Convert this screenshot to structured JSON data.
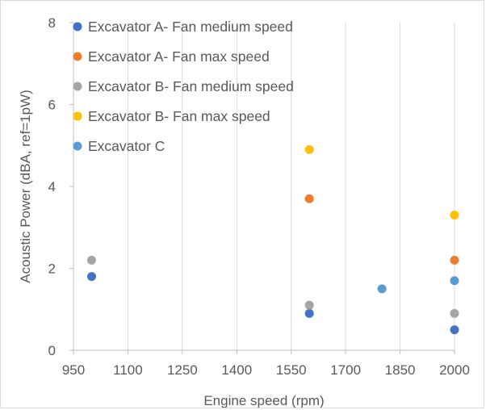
{
  "chart_data": {
    "type": "scatter",
    "title": "",
    "xlabel": "Engine speed (rpm)",
    "ylabel": "Acoustic Power (dBA, ref=1pW)",
    "xlim": [
      950,
      2000
    ],
    "ylim": [
      0,
      8
    ],
    "xticks": [
      950,
      1100,
      1250,
      1400,
      1550,
      1700,
      1850,
      2000
    ],
    "yticks": [
      0,
      2,
      4,
      6,
      8
    ],
    "grid": "vertical",
    "legend": "top-left",
    "series": [
      {
        "name": "Excavator A- Fan medium speed",
        "color": "#4472c4",
        "points": [
          {
            "x": 1000,
            "y": 1.8
          },
          {
            "x": 1600,
            "y": 0.9
          },
          {
            "x": 2000,
            "y": 0.5
          }
        ]
      },
      {
        "name": "Excavator A- Fan max speed",
        "color": "#ed7d31",
        "points": [
          {
            "x": 1600,
            "y": 3.7
          },
          {
            "x": 2000,
            "y": 2.2
          }
        ]
      },
      {
        "name": "Excavator B- Fan medium speed",
        "color": "#a5a5a5",
        "points": [
          {
            "x": 1000,
            "y": 2.2
          },
          {
            "x": 1600,
            "y": 1.1
          },
          {
            "x": 2000,
            "y": 0.9
          }
        ]
      },
      {
        "name": "Excavator B- Fan max speed",
        "color": "#ffc000",
        "points": [
          {
            "x": 1600,
            "y": 4.9
          },
          {
            "x": 2000,
            "y": 3.3
          }
        ]
      },
      {
        "name": "Excavator C",
        "color": "#5b9bd5",
        "points": [
          {
            "x": 1800,
            "y": 1.5
          },
          {
            "x": 2000,
            "y": 1.7
          }
        ]
      }
    ]
  }
}
